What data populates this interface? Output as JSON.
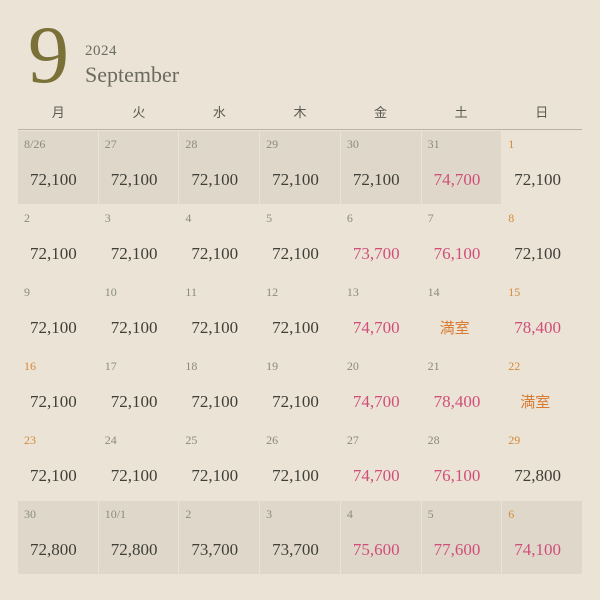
{
  "header": {
    "month_number": "9",
    "year": "2024",
    "month_name": "September"
  },
  "weekdays": [
    "月",
    "火",
    "水",
    "木",
    "金",
    "土",
    "日"
  ],
  "colors": {
    "background": "#ebe3d6",
    "shaded_cell": "#dfd8ca",
    "month_num": "#7a7139",
    "text_muted": "#6a6a5f",
    "daynum_normal": "#8a8a80",
    "daynum_holiday": "#d48a3a",
    "price_normal": "#3f3f37",
    "price_highlight": "#d04f7a",
    "full_text": "#d97a32",
    "divider": "#b8b3a5"
  },
  "typography": {
    "month_num_size": 82,
    "month_name_size": 22,
    "year_size": 15,
    "weekday_size": 13,
    "daynum_size": 12,
    "price_size": 17
  },
  "full_label": "満室",
  "cells": [
    {
      "day": "8/26",
      "price": "72,100",
      "shaded": true,
      "holiday": false,
      "highlight": false,
      "full": false
    },
    {
      "day": "27",
      "price": "72,100",
      "shaded": true,
      "holiday": false,
      "highlight": false,
      "full": false
    },
    {
      "day": "28",
      "price": "72,100",
      "shaded": true,
      "holiday": false,
      "highlight": false,
      "full": false
    },
    {
      "day": "29",
      "price": "72,100",
      "shaded": true,
      "holiday": false,
      "highlight": false,
      "full": false
    },
    {
      "day": "30",
      "price": "72,100",
      "shaded": true,
      "holiday": false,
      "highlight": false,
      "full": false
    },
    {
      "day": "31",
      "price": "74,700",
      "shaded": true,
      "holiday": false,
      "highlight": true,
      "full": false
    },
    {
      "day": "1",
      "price": "72,100",
      "shaded": false,
      "holiday": true,
      "highlight": false,
      "full": false
    },
    {
      "day": "2",
      "price": "72,100",
      "shaded": false,
      "holiday": false,
      "highlight": false,
      "full": false
    },
    {
      "day": "3",
      "price": "72,100",
      "shaded": false,
      "holiday": false,
      "highlight": false,
      "full": false
    },
    {
      "day": "4",
      "price": "72,100",
      "shaded": false,
      "holiday": false,
      "highlight": false,
      "full": false
    },
    {
      "day": "5",
      "price": "72,100",
      "shaded": false,
      "holiday": false,
      "highlight": false,
      "full": false
    },
    {
      "day": "6",
      "price": "73,700",
      "shaded": false,
      "holiday": false,
      "highlight": true,
      "full": false
    },
    {
      "day": "7",
      "price": "76,100",
      "shaded": false,
      "holiday": false,
      "highlight": true,
      "full": false
    },
    {
      "day": "8",
      "price": "72,100",
      "shaded": false,
      "holiday": true,
      "highlight": false,
      "full": false
    },
    {
      "day": "9",
      "price": "72,100",
      "shaded": false,
      "holiday": false,
      "highlight": false,
      "full": false
    },
    {
      "day": "10",
      "price": "72,100",
      "shaded": false,
      "holiday": false,
      "highlight": false,
      "full": false
    },
    {
      "day": "11",
      "price": "72,100",
      "shaded": false,
      "holiday": false,
      "highlight": false,
      "full": false
    },
    {
      "day": "12",
      "price": "72,100",
      "shaded": false,
      "holiday": false,
      "highlight": false,
      "full": false
    },
    {
      "day": "13",
      "price": "74,700",
      "shaded": false,
      "holiday": false,
      "highlight": true,
      "full": false
    },
    {
      "day": "14",
      "price": "",
      "shaded": false,
      "holiday": false,
      "highlight": false,
      "full": true
    },
    {
      "day": "15",
      "price": "78,400",
      "shaded": false,
      "holiday": true,
      "highlight": true,
      "full": false
    },
    {
      "day": "16",
      "price": "72,100",
      "shaded": false,
      "holiday": true,
      "highlight": false,
      "full": false
    },
    {
      "day": "17",
      "price": "72,100",
      "shaded": false,
      "holiday": false,
      "highlight": false,
      "full": false
    },
    {
      "day": "18",
      "price": "72,100",
      "shaded": false,
      "holiday": false,
      "highlight": false,
      "full": false
    },
    {
      "day": "19",
      "price": "72,100",
      "shaded": false,
      "holiday": false,
      "highlight": false,
      "full": false
    },
    {
      "day": "20",
      "price": "74,700",
      "shaded": false,
      "holiday": false,
      "highlight": true,
      "full": false
    },
    {
      "day": "21",
      "price": "78,400",
      "shaded": false,
      "holiday": false,
      "highlight": true,
      "full": false
    },
    {
      "day": "22",
      "price": "",
      "shaded": false,
      "holiday": true,
      "highlight": false,
      "full": true
    },
    {
      "day": "23",
      "price": "72,100",
      "shaded": false,
      "holiday": true,
      "highlight": false,
      "full": false
    },
    {
      "day": "24",
      "price": "72,100",
      "shaded": false,
      "holiday": false,
      "highlight": false,
      "full": false
    },
    {
      "day": "25",
      "price": "72,100",
      "shaded": false,
      "holiday": false,
      "highlight": false,
      "full": false
    },
    {
      "day": "26",
      "price": "72,100",
      "shaded": false,
      "holiday": false,
      "highlight": false,
      "full": false
    },
    {
      "day": "27",
      "price": "74,700",
      "shaded": false,
      "holiday": false,
      "highlight": true,
      "full": false
    },
    {
      "day": "28",
      "price": "76,100",
      "shaded": false,
      "holiday": false,
      "highlight": true,
      "full": false
    },
    {
      "day": "29",
      "price": "72,800",
      "shaded": false,
      "holiday": true,
      "highlight": false,
      "full": false
    },
    {
      "day": "30",
      "price": "72,800",
      "shaded": true,
      "holiday": false,
      "highlight": false,
      "full": false
    },
    {
      "day": "10/1",
      "price": "72,800",
      "shaded": true,
      "holiday": false,
      "highlight": false,
      "full": false
    },
    {
      "day": "2",
      "price": "73,700",
      "shaded": true,
      "holiday": false,
      "highlight": false,
      "full": false
    },
    {
      "day": "3",
      "price": "73,700",
      "shaded": true,
      "holiday": false,
      "highlight": false,
      "full": false
    },
    {
      "day": "4",
      "price": "75,600",
      "shaded": true,
      "holiday": false,
      "highlight": true,
      "full": false
    },
    {
      "day": "5",
      "price": "77,600",
      "shaded": true,
      "holiday": false,
      "highlight": true,
      "full": false
    },
    {
      "day": "6",
      "price": "74,100",
      "shaded": true,
      "holiday": true,
      "highlight": true,
      "full": false
    }
  ]
}
